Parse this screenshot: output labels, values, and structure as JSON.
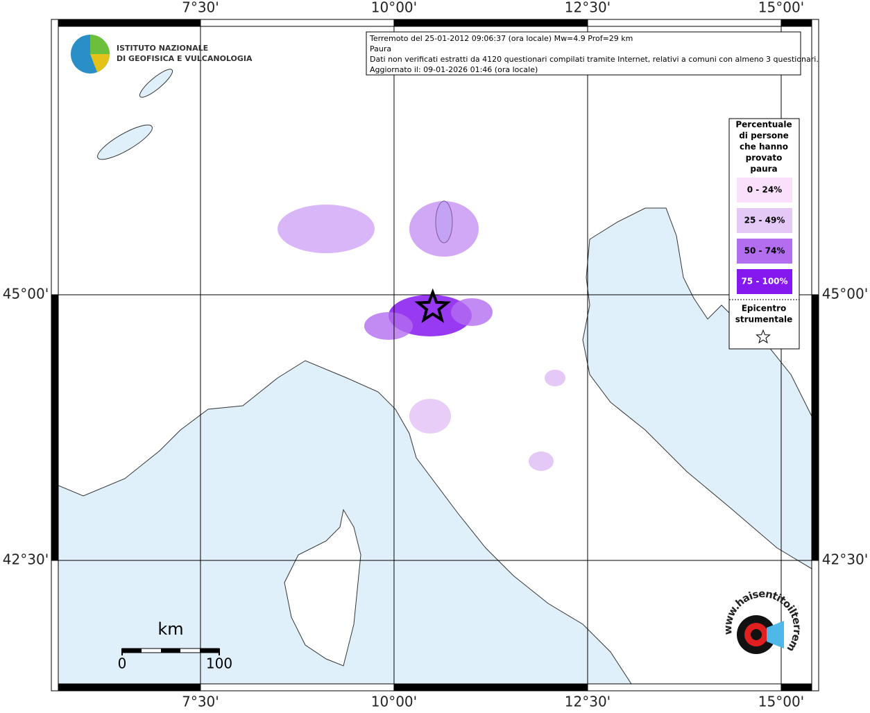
{
  "title_box": {
    "lines": [
      "Terremoto del 25-01-2012 09:06:37 (ora locale) Mw=4.9 Prof=29 km",
      "Paura",
      "Dati non verificati estratti da 4120 questionari compilati tramite Internet, relativi a comuni con almeno 3 questionari.",
      "Aggiornato il: 09-01-2026 01:46 (ora locale)"
    ]
  },
  "institute_logo": {
    "lines": [
      "ISTITUTO NAZIONALE",
      "DI GEOFISICA E VULCANOLOGIA"
    ]
  },
  "graticule": {
    "lon_range": [
      5.574,
      15.484
    ],
    "lat_range": [
      41.273,
      47.591
    ],
    "lon": [
      {
        "value": 7.5,
        "label": "7°30'"
      },
      {
        "value": 10,
        "label": "10°00'"
      },
      {
        "value": 12.5,
        "label": "12°30'"
      },
      {
        "value": 15,
        "label": "15°00'"
      }
    ],
    "lat": [
      {
        "value": 45,
        "label": "45°00'"
      },
      {
        "value": 42.5,
        "label": "42°30'"
      }
    ]
  },
  "legend": {
    "title_lines": [
      "Percentuale",
      "di persone",
      "che hanno",
      "provato",
      "paura"
    ],
    "classes": [
      {
        "label": "0 - 24%",
        "color": "#fbe0fb"
      },
      {
        "label": "25 - 49%",
        "color": "#e4c8f6"
      },
      {
        "label": "50 - 74%",
        "color": "#b36ef0"
      },
      {
        "label": "75 - 100%",
        "color": "#8518ee"
      }
    ],
    "epicenter_lines": [
      "Epicentro",
      "strumentale"
    ]
  },
  "epicenter": {
    "lon": 10.5,
    "lat": 44.88
  },
  "scale_bar": {
    "unit": "km",
    "ticks": [
      0,
      100
    ]
  },
  "watermark": "www.haisentitoilterremoto.it"
}
